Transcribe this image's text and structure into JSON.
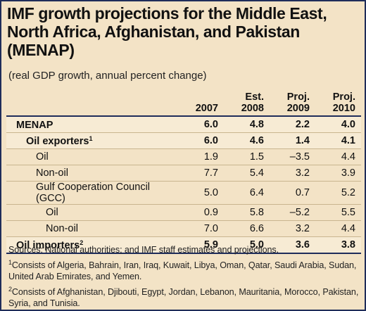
{
  "title": "IMF growth projections for the Middle East, North Africa, Afghanistan, and Pakistan (MENAP)",
  "subtitle": "(real GDP growth, annual percent change)",
  "columns": [
    {
      "line1": "",
      "line2": "2007"
    },
    {
      "line1": "Est.",
      "line2": "2008"
    },
    {
      "line1": "Proj.",
      "line2": "2009"
    },
    {
      "line1": "Proj.",
      "line2": "2010"
    }
  ],
  "rows": [
    {
      "label": "MENAP",
      "sup": "",
      "values": [
        "6.0",
        "4.8",
        "2.2",
        "4.0"
      ]
    },
    {
      "label": "Oil exporters",
      "sup": "1",
      "values": [
        "6.0",
        "4.6",
        "1.4",
        "4.1"
      ]
    },
    {
      "label": "Oil",
      "sup": "",
      "values": [
        "1.9",
        "1.5",
        "–3.5",
        "4.4"
      ]
    },
    {
      "label": "Non-oil",
      "sup": "",
      "values": [
        "7.7",
        "5.4",
        "3.2",
        "3.9"
      ]
    },
    {
      "label": "Gulf Cooperation Council (GCC)",
      "sup": "",
      "values": [
        "5.0",
        "6.4",
        "0.7",
        "5.2"
      ]
    },
    {
      "label": "Oil",
      "sup": "",
      "values": [
        "0.9",
        "5.8",
        "–5.2",
        "5.5"
      ]
    },
    {
      "label": "Non-oil",
      "sup": "",
      "values": [
        "7.0",
        "6.6",
        "3.2",
        "4.4"
      ]
    },
    {
      "label": "Oil importers",
      "sup": "2",
      "values": [
        "5.9",
        "5.0",
        "3.6",
        "3.8"
      ]
    }
  ],
  "notes": {
    "sources": "Sources: National authorities; and IMF staff estimates and projections.",
    "note1_mark": "1",
    "note1": "Consists of Algeria, Bahrain, Iran, Iraq, Kuwait, Libya, Oman, Qatar, Saudi Arabia, Sudan, United Arab Emirates, and Yemen.",
    "note2_mark": "2",
    "note2": "Consists of Afghanistan, Djibouti, Egypt, Jordan, Lebanon, Mauritania, Morocco, Pakistan, Syria, and Tunisia."
  },
  "colors": {
    "border": "#1f2d5a",
    "background": "#f3e3c6",
    "row_shade": "#f7ebd4"
  }
}
